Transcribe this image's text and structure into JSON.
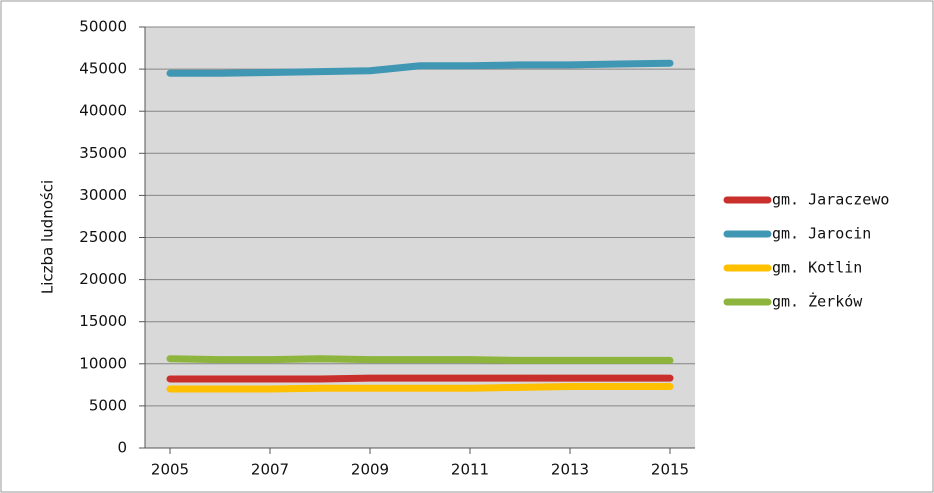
{
  "chart_data": {
    "type": "line",
    "y_label": "Liczba ludności",
    "x": [
      2005,
      2006,
      2007,
      2008,
      2009,
      2010,
      2011,
      2012,
      2013,
      2014,
      2015
    ],
    "xlim": [
      2004.5,
      2015.5
    ],
    "xticks": [
      2005,
      2007,
      2009,
      2011,
      2013,
      2015
    ],
    "ylim": [
      0,
      50000
    ],
    "yticks": [
      0,
      5000,
      10000,
      15000,
      20000,
      25000,
      30000,
      35000,
      40000,
      45000,
      50000
    ],
    "grid": true,
    "legend": "right",
    "series": [
      {
        "name": "gm. Jaraczewo",
        "color": "#c9302c",
        "values": [
          8200,
          8200,
          8200,
          8200,
          8300,
          8300,
          8300,
          8300,
          8300,
          8300,
          8300
        ]
      },
      {
        "name": "gm. Jarocin",
        "color": "#3f97b3",
        "values": [
          44500,
          44500,
          44600,
          44700,
          44800,
          45400,
          45400,
          45500,
          45500,
          45600,
          45700
        ]
      },
      {
        "name": "gm. Kotlin",
        "color": "#ffc000",
        "values": [
          7000,
          7000,
          7000,
          7100,
          7100,
          7100,
          7100,
          7200,
          7300,
          7300,
          7300
        ]
      },
      {
        "name": "gm. Żerków",
        "color": "#8db43c",
        "values": [
          10600,
          10500,
          10500,
          10600,
          10500,
          10500,
          10500,
          10400,
          10400,
          10400,
          10400
        ]
      }
    ]
  }
}
